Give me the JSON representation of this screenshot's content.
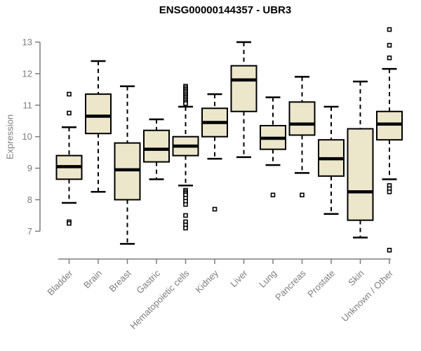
{
  "header": {
    "title": "ENSG00000144357 - UBR3"
  },
  "chart_data": {
    "type": "boxplot",
    "title": "ENSG00000144357 - UBR3",
    "xlabel": "",
    "ylabel": "Expression",
    "ylim": [
      6.3,
      13.5
    ],
    "yticks": [
      7,
      8,
      9,
      10,
      11,
      12,
      13
    ],
    "grid": false,
    "legend": "none",
    "categories": [
      "Bladder",
      "Brain",
      "Breast",
      "Gastric",
      "Hematopoietic cells",
      "Kidney",
      "Liver",
      "Lung",
      "Pancreas",
      "Prostate",
      "Skin",
      "Unknown / Other"
    ],
    "series": [
      {
        "category": "Bladder",
        "whisker_low": 7.9,
        "q1": 8.65,
        "median": 9.05,
        "q3": 9.4,
        "whisker_high": 10.3,
        "outliers": [
          11.35,
          10.75,
          7.3,
          7.25
        ]
      },
      {
        "category": "Brain",
        "whisker_low": 8.25,
        "q1": 10.1,
        "median": 10.65,
        "q3": 11.35,
        "whisker_high": 12.4,
        "outliers": []
      },
      {
        "category": "Breast",
        "whisker_low": 6.6,
        "q1": 8.0,
        "median": 8.95,
        "q3": 9.8,
        "whisker_high": 11.6,
        "outliers": []
      },
      {
        "category": "Gastric",
        "whisker_low": 8.65,
        "q1": 9.2,
        "median": 9.6,
        "q3": 10.2,
        "whisker_high": 10.55,
        "outliers": []
      },
      {
        "category": "Hematopoietic cells",
        "whisker_low": 8.45,
        "q1": 9.4,
        "median": 9.7,
        "q3": 10.0,
        "whisker_high": 10.95,
        "outliers": [
          11.6,
          11.55,
          11.5,
          11.45,
          11.4,
          11.35,
          11.3,
          11.25,
          11.2,
          11.15,
          11.1,
          11.05,
          8.3,
          8.25,
          8.2,
          8.15,
          8.05,
          7.95,
          7.85,
          7.5,
          7.3,
          7.2,
          7.1
        ]
      },
      {
        "category": "Kidney",
        "whisker_low": 9.3,
        "q1": 10.0,
        "median": 10.45,
        "q3": 10.9,
        "whisker_high": 11.35,
        "outliers": [
          7.7
        ]
      },
      {
        "category": "Liver",
        "whisker_low": 9.35,
        "q1": 10.8,
        "median": 11.8,
        "q3": 12.25,
        "whisker_high": 13.0,
        "outliers": []
      },
      {
        "category": "Lung",
        "whisker_low": 9.1,
        "q1": 9.6,
        "median": 9.95,
        "q3": 10.35,
        "whisker_high": 11.25,
        "outliers": [
          8.15
        ]
      },
      {
        "category": "Pancreas",
        "whisker_low": 8.85,
        "q1": 10.05,
        "median": 10.4,
        "q3": 11.1,
        "whisker_high": 11.9,
        "outliers": [
          8.15
        ]
      },
      {
        "category": "Prostate",
        "whisker_low": 7.55,
        "q1": 8.75,
        "median": 9.3,
        "q3": 9.9,
        "whisker_high": 10.95,
        "outliers": []
      },
      {
        "category": "Skin",
        "whisker_low": 6.8,
        "q1": 7.35,
        "median": 8.25,
        "q3": 10.25,
        "whisker_high": 11.75,
        "outliers": []
      },
      {
        "category": "Unknown / Other",
        "whisker_low": 8.65,
        "q1": 9.9,
        "median": 10.4,
        "q3": 10.8,
        "whisker_high": 12.15,
        "outliers": [
          13.4,
          12.9,
          12.5,
          8.45,
          8.35,
          8.25,
          6.4
        ]
      }
    ],
    "colors": {
      "box_fill": "#ECE6CB",
      "box_stroke": "#000000",
      "median": "#000000",
      "whisker": "#000000",
      "outlier_stroke": "#000000",
      "outlier_fill": "#ffffff",
      "axis": "#7d7d7d",
      "tick_text": "#7d7d7d",
      "title_text": "#000000",
      "background": "#ffffff"
    }
  }
}
